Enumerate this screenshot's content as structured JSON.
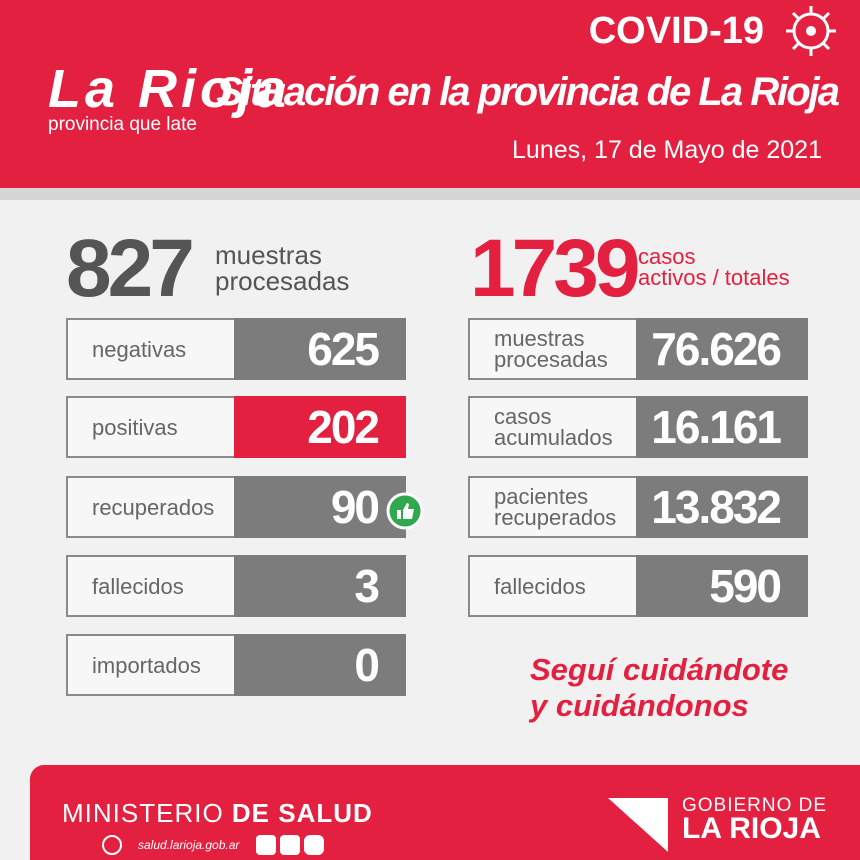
{
  "header": {
    "logo": "La Rioja",
    "slogan": "provincia que late",
    "title": "COVID-19",
    "subtitle": "Situación en la provincia de La Rioja",
    "date": "Lunes, 17 de Mayo de 2021"
  },
  "daily": {
    "value": "827",
    "label": [
      "muestras",
      "procesadas"
    ],
    "rows": [
      {
        "label": [
          "negativas"
        ],
        "value": "625"
      },
      {
        "label": [
          "positivas"
        ],
        "value": "202"
      },
      {
        "label": [
          "recuperados"
        ],
        "value": "90"
      },
      {
        "label": [
          "fallecidos"
        ],
        "value": "3"
      },
      {
        "label": [
          "importados"
        ],
        "value": "0"
      }
    ]
  },
  "totals": {
    "value": "1739",
    "label": [
      "casos",
      "activos / totales"
    ],
    "rows": [
      {
        "label": [
          "muestras",
          "procesadas"
        ],
        "value": "76.626"
      },
      {
        "label": [
          "casos",
          "acumulados"
        ],
        "value": "16.161"
      },
      {
        "label": [
          "pacientes",
          "recuperados"
        ],
        "value": "13.832"
      },
      {
        "label": [
          "fallecidos"
        ],
        "value": "590"
      }
    ]
  },
  "message": [
    "Seguí cuidándote",
    "y cuidándonos"
  ],
  "footer": {
    "ministry": [
      "MINISTERIO",
      "DE SALUD"
    ],
    "website": "salud.larioja.gob.ar",
    "government": [
      "GOBIERNO DE",
      "LA RIOJA"
    ]
  }
}
